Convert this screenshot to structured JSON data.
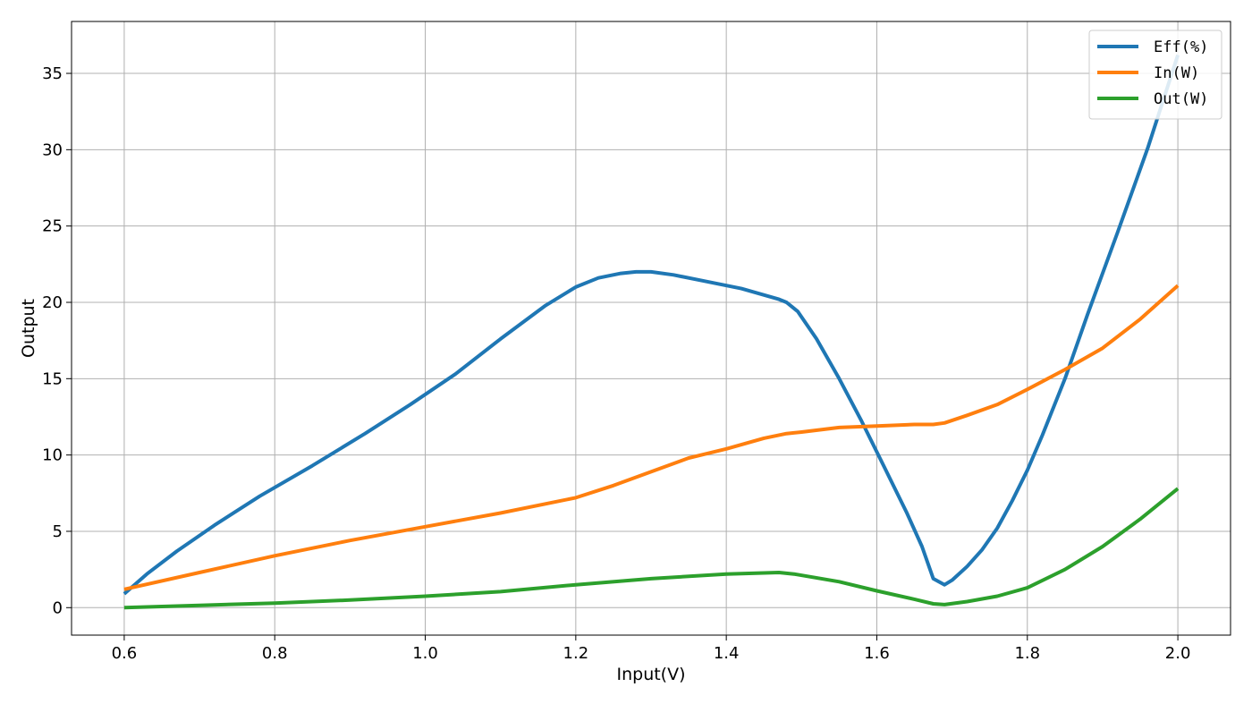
{
  "chart_data": {
    "type": "line",
    "title": "",
    "xlabel": "Input(V)",
    "ylabel": "Output",
    "xlim": [
      0.53,
      2.07
    ],
    "ylim": [
      -1.8,
      38.4
    ],
    "xticks": [
      0.6,
      0.8,
      1.0,
      1.2,
      1.4,
      1.6,
      1.8,
      2.0
    ],
    "xtick_labels": [
      "0.6",
      "0.8",
      "1.0",
      "1.2",
      "1.4",
      "1.6",
      "1.8",
      "2.0"
    ],
    "yticks": [
      0,
      5,
      10,
      15,
      20,
      25,
      30,
      35
    ],
    "ytick_labels": [
      "0",
      "5",
      "10",
      "15",
      "20",
      "25",
      "30",
      "35"
    ],
    "grid": true,
    "legend_position": "top-right",
    "series": [
      {
        "name": "Eff(%)",
        "color": "#1f77b4",
        "x": [
          0.6,
          0.63,
          0.67,
          0.72,
          0.78,
          0.85,
          0.92,
          0.98,
          1.04,
          1.1,
          1.16,
          1.2,
          1.23,
          1.26,
          1.28,
          1.3,
          1.33,
          1.37,
          1.42,
          1.47,
          1.48,
          1.495,
          1.52,
          1.55,
          1.58,
          1.61,
          1.64,
          1.66,
          1.675,
          1.69,
          1.7,
          1.72,
          1.74,
          1.76,
          1.78,
          1.8,
          1.82,
          1.85,
          1.88,
          1.92,
          1.96,
          2.0
        ],
        "y": [
          0.9,
          2.2,
          3.7,
          5.4,
          7.3,
          9.3,
          11.4,
          13.3,
          15.3,
          17.6,
          19.8,
          21.0,
          21.6,
          21.9,
          22.0,
          22.0,
          21.8,
          21.4,
          20.9,
          20.2,
          20.0,
          19.4,
          17.6,
          15.0,
          12.2,
          9.2,
          6.2,
          4.0,
          1.9,
          1.5,
          1.8,
          2.7,
          3.8,
          5.2,
          7.0,
          9.0,
          11.3,
          15.0,
          19.2,
          24.6,
          30.1,
          36.2
        ]
      },
      {
        "name": "In(W)",
        "color": "#ff7f0e",
        "x": [
          0.6,
          0.7,
          0.8,
          0.9,
          1.0,
          1.1,
          1.2,
          1.25,
          1.3,
          1.35,
          1.4,
          1.45,
          1.48,
          1.5,
          1.55,
          1.6,
          1.65,
          1.675,
          1.69,
          1.72,
          1.76,
          1.8,
          1.85,
          1.9,
          1.95,
          2.0
        ],
        "y": [
          1.2,
          2.3,
          3.4,
          4.4,
          5.3,
          6.2,
          7.2,
          8.0,
          8.9,
          9.8,
          10.4,
          11.1,
          11.4,
          11.5,
          11.8,
          11.9,
          12.0,
          12.0,
          12.1,
          12.6,
          13.3,
          14.3,
          15.6,
          17.0,
          18.9,
          21.1
        ]
      },
      {
        "name": "Out(W)",
        "color": "#2ca02c",
        "x": [
          0.6,
          0.7,
          0.8,
          0.9,
          1.0,
          1.1,
          1.2,
          1.3,
          1.4,
          1.47,
          1.49,
          1.55,
          1.6,
          1.65,
          1.675,
          1.69,
          1.72,
          1.76,
          1.8,
          1.85,
          1.9,
          1.95,
          2.0
        ],
        "y": [
          0.0,
          0.15,
          0.3,
          0.5,
          0.75,
          1.05,
          1.5,
          1.9,
          2.2,
          2.3,
          2.2,
          1.7,
          1.1,
          0.55,
          0.25,
          0.2,
          0.4,
          0.75,
          1.3,
          2.5,
          4.0,
          5.8,
          7.8
        ]
      }
    ]
  }
}
